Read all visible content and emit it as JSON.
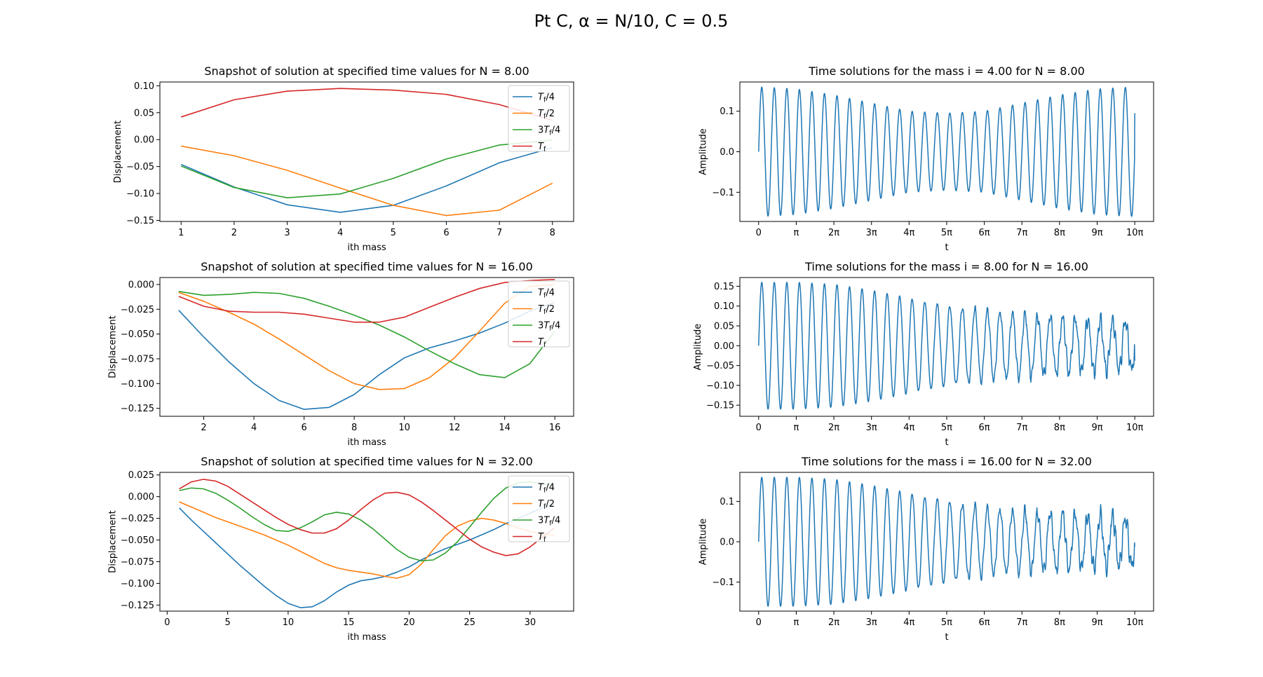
{
  "figure": {
    "suptitle": "Pt C,  α = N/10,  C = 0.5"
  },
  "colors": {
    "tf4": "#1f77b4",
    "tf2": "#ff7f0e",
    "tf34": "#2ca02c",
    "tf": "#d62728",
    "time": "#1f77b4"
  },
  "chart_data": [
    {
      "type": "line",
      "title": "Snapshot of solution at specified time values for N = 8.00",
      "xlabel": "ith mass",
      "ylabel": "Displacement",
      "xlim": [
        0.6,
        8.4
      ],
      "ylim": [
        -0.152,
        0.107
      ],
      "xticks": [
        1,
        2,
        3,
        4,
        5,
        6,
        7,
        8
      ],
      "yticks": [
        -0.15,
        -0.1,
        -0.05,
        0.0,
        0.05,
        0.1
      ],
      "ytick_labels": [
        "−0.15",
        "−0.10",
        "−0.05",
        "0.00",
        "0.05",
        "0.10"
      ],
      "legend": "top-right",
      "x": [
        1,
        2,
        3,
        4,
        5,
        6,
        7,
        8
      ],
      "series": [
        {
          "name": "Tf/4",
          "color_key": "tf4",
          "values": [
            -0.046,
            -0.088,
            -0.121,
            -0.135,
            -0.122,
            -0.086,
            -0.043,
            -0.015
          ]
        },
        {
          "name": "Tf/2",
          "color_key": "tf2",
          "values": [
            -0.012,
            -0.03,
            -0.057,
            -0.09,
            -0.122,
            -0.141,
            -0.131,
            -0.081
          ]
        },
        {
          "name": "3Tf/4",
          "color_key": "tf34",
          "values": [
            -0.049,
            -0.089,
            -0.108,
            -0.101,
            -0.072,
            -0.036,
            -0.01,
            -0.001
          ]
        },
        {
          "name": "Tf",
          "color_key": "tf",
          "values": [
            0.042,
            0.074,
            0.09,
            0.095,
            0.092,
            0.084,
            0.065,
            0.036
          ]
        }
      ]
    },
    {
      "type": "line",
      "title": "Time solutions for the mass i = 4.00 for N = 8.00",
      "xlabel": "t",
      "ylabel": "Amplitude",
      "xlim": [
        -1.57,
        32.99
      ],
      "ylim": [
        -0.172,
        0.172
      ],
      "xtick_labels": [
        "0",
        "π",
        "2π",
        "3π",
        "4π",
        "5π",
        "6π",
        "7π",
        "8π",
        "9π",
        "10π"
      ],
      "yticks": [
        -0.1,
        0.0,
        0.1
      ],
      "ytick_labels": [
        "−0.1",
        "0.0",
        "0.1"
      ],
      "t_end_label": "10π",
      "cycles": 30,
      "envelope": [
        0.16,
        0.155,
        0.14,
        0.12,
        0.1,
        0.095,
        0.1,
        0.12,
        0.14,
        0.155,
        0.16
      ],
      "noise": 0.0,
      "end_amplitude": 0.095
    },
    {
      "type": "line",
      "title": "Snapshot of solution at specified time values for N = 16.00",
      "xlabel": "ith mass",
      "ylabel": "Displacement",
      "xlim": [
        0.25,
        16.75
      ],
      "ylim": [
        -0.133,
        0.007
      ],
      "xticks": [
        2,
        4,
        6,
        8,
        10,
        12,
        14,
        16
      ],
      "yticks": [
        -0.125,
        -0.1,
        -0.075,
        -0.05,
        -0.025,
        0.0
      ],
      "ytick_labels": [
        "−0.125",
        "−0.100",
        "−0.075",
        "−0.050",
        "−0.025",
        "0.000"
      ],
      "legend": "top-right",
      "x": [
        1,
        2,
        3,
        4,
        5,
        6,
        7,
        8,
        9,
        10,
        11,
        12,
        13,
        14,
        15,
        16
      ],
      "series": [
        {
          "name": "Tf/4",
          "color_key": "tf4",
          "values": [
            -0.026,
            -0.053,
            -0.078,
            -0.1,
            -0.117,
            -0.126,
            -0.124,
            -0.111,
            -0.091,
            -0.074,
            -0.064,
            -0.057,
            -0.049,
            -0.039,
            -0.027,
            -0.018
          ]
        },
        {
          "name": "Tf/2",
          "color_key": "tf2",
          "values": [
            -0.008,
            -0.017,
            -0.028,
            -0.04,
            -0.055,
            -0.071,
            -0.087,
            -0.1,
            -0.106,
            -0.105,
            -0.094,
            -0.074,
            -0.047,
            -0.019,
            -0.002,
            0.0
          ]
        },
        {
          "name": "3Tf/4",
          "color_key": "tf34",
          "values": [
            -0.007,
            -0.011,
            -0.01,
            -0.008,
            -0.009,
            -0.014,
            -0.022,
            -0.031,
            -0.041,
            -0.053,
            -0.067,
            -0.08,
            -0.091,
            -0.094,
            -0.08,
            -0.047
          ]
        },
        {
          "name": "Tf",
          "color_key": "tf",
          "values": [
            -0.012,
            -0.022,
            -0.027,
            -0.028,
            -0.028,
            -0.03,
            -0.034,
            -0.038,
            -0.038,
            -0.033,
            -0.023,
            -0.013,
            -0.004,
            0.002,
            0.004,
            0.005
          ]
        }
      ]
    },
    {
      "type": "line",
      "title": "Time solutions for the mass i = 8.00 for N = 16.00",
      "xlabel": "t",
      "ylabel": "Amplitude",
      "xlim": [
        -1.57,
        32.99
      ],
      "ylim": [
        -0.178,
        0.172
      ],
      "xtick_labels": [
        "0",
        "π",
        "2π",
        "3π",
        "4π",
        "5π",
        "6π",
        "7π",
        "8π",
        "9π",
        "10π"
      ],
      "yticks": [
        -0.15,
        -0.1,
        -0.05,
        0.0,
        0.05,
        0.1,
        0.15
      ],
      "ytick_labels": [
        "−0.15",
        "−0.10",
        "−0.05",
        "0.00",
        "0.05",
        "0.10",
        "0.15"
      ],
      "t_end_label": "10π",
      "cycles": 30,
      "envelope": [
        0.16,
        0.16,
        0.155,
        0.14,
        0.12,
        0.1,
        0.09,
        0.08,
        0.07,
        0.065,
        0.06
      ],
      "noise": 0.022,
      "end_amplitude": -0.038
    },
    {
      "type": "line",
      "title": "Snapshot of solution at specified time values for N = 32.00",
      "xlabel": "ith mass",
      "ylabel": "Displacement",
      "xlim": [
        -0.6,
        33.6
      ],
      "ylim": [
        -0.132,
        0.028
      ],
      "xticks": [
        0,
        5,
        10,
        15,
        20,
        25,
        30
      ],
      "yticks": [
        -0.125,
        -0.1,
        -0.075,
        -0.05,
        -0.025,
        0.0,
        0.025
      ],
      "ytick_labels": [
        "−0.125",
        "−0.100",
        "−0.075",
        "−0.050",
        "−0.025",
        "0.000",
        "0.025"
      ],
      "legend": "top-right",
      "x": [
        1,
        2,
        3,
        4,
        5,
        6,
        7,
        8,
        9,
        10,
        11,
        12,
        13,
        14,
        15,
        16,
        17,
        18,
        19,
        20,
        21,
        22,
        23,
        24,
        25,
        26,
        27,
        28,
        29,
        30,
        31,
        32
      ],
      "series": [
        {
          "name": "Tf/4",
          "color_key": "tf4",
          "values": [
            -0.013,
            -0.027,
            -0.04,
            -0.053,
            -0.066,
            -0.079,
            -0.091,
            -0.103,
            -0.114,
            -0.123,
            -0.128,
            -0.127,
            -0.12,
            -0.11,
            -0.102,
            -0.097,
            -0.095,
            -0.092,
            -0.087,
            -0.081,
            -0.073,
            -0.066,
            -0.06,
            -0.055,
            -0.05,
            -0.044,
            -0.038,
            -0.031,
            -0.025,
            -0.019,
            -0.013,
            -0.009
          ]
        },
        {
          "name": "Tf/2",
          "color_key": "tf2",
          "values": [
            -0.006,
            -0.012,
            -0.018,
            -0.024,
            -0.029,
            -0.034,
            -0.039,
            -0.044,
            -0.05,
            -0.056,
            -0.063,
            -0.07,
            -0.077,
            -0.082,
            -0.085,
            -0.087,
            -0.089,
            -0.092,
            -0.094,
            -0.09,
            -0.078,
            -0.061,
            -0.045,
            -0.034,
            -0.028,
            -0.025,
            -0.027,
            -0.031,
            -0.036,
            -0.04,
            -0.043,
            -0.045
          ]
        },
        {
          "name": "3Tf/4",
          "color_key": "tf34",
          "values": [
            0.007,
            0.01,
            0.009,
            0.004,
            -0.004,
            -0.013,
            -0.023,
            -0.032,
            -0.039,
            -0.04,
            -0.036,
            -0.029,
            -0.021,
            -0.018,
            -0.02,
            -0.027,
            -0.037,
            -0.049,
            -0.061,
            -0.07,
            -0.074,
            -0.073,
            -0.065,
            -0.052,
            -0.035,
            -0.018,
            -0.002,
            0.01,
            0.016,
            0.017,
            0.015,
            0.012
          ]
        },
        {
          "name": "Tf",
          "color_key": "tf",
          "values": [
            0.009,
            0.017,
            0.02,
            0.018,
            0.012,
            0.003,
            -0.006,
            -0.015,
            -0.024,
            -0.032,
            -0.038,
            -0.042,
            -0.042,
            -0.037,
            -0.027,
            -0.015,
            -0.004,
            0.004,
            0.005,
            0.002,
            -0.006,
            -0.016,
            -0.027,
            -0.038,
            -0.049,
            -0.058,
            -0.064,
            -0.068,
            -0.066,
            -0.058,
            -0.047,
            -0.036
          ]
        }
      ]
    },
    {
      "type": "line",
      "title": "Time solutions for the mass i = 16.00 for N = 32.00",
      "xlabel": "t",
      "ylabel": "Amplitude",
      "xlim": [
        -1.57,
        32.99
      ],
      "ylim": [
        -0.172,
        0.172
      ],
      "xtick_labels": [
        "0",
        "π",
        "2π",
        "3π",
        "4π",
        "5π",
        "6π",
        "7π",
        "8π",
        "9π",
        "10π"
      ],
      "yticks": [
        -0.1,
        0.0,
        0.1
      ],
      "ytick_labels": [
        "−0.1",
        "0.0",
        "0.1"
      ],
      "t_end_label": "10π",
      "cycles": 30,
      "envelope": [
        0.16,
        0.16,
        0.155,
        0.14,
        0.12,
        0.1,
        0.085,
        0.075,
        0.07,
        0.065,
        0.06
      ],
      "noise": 0.025,
      "end_amplitude": -0.012
    }
  ]
}
